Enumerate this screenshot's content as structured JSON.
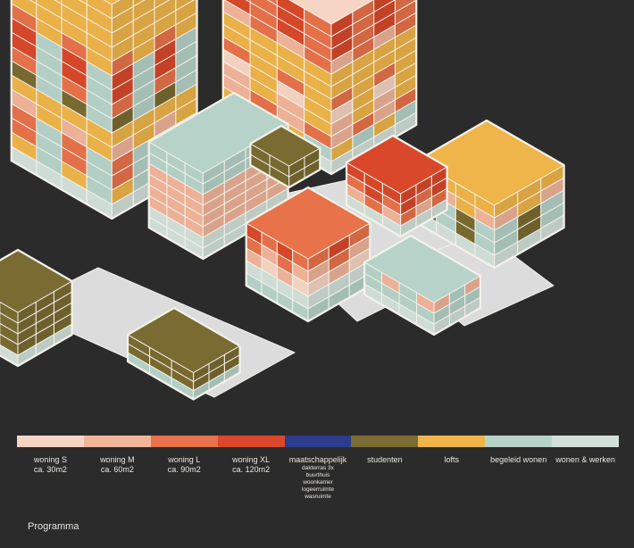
{
  "colors": {
    "woning_s": "#f6d5c4",
    "woning_m": "#f1b59a",
    "woning_l": "#e8724a",
    "woning_xl": "#d9482a",
    "maatschappelijk": "#2b3d8c",
    "studenten": "#7a6b32",
    "lofts": "#efb54a",
    "begeleid": "#b7d3c9",
    "wonen_werken": "#d3e0da",
    "neutral": "#dcdcdc",
    "stroke": "#f3f1ea"
  },
  "legend": [
    {
      "key": "woning_s",
      "label": "woning S",
      "sub": "ca. 30m2"
    },
    {
      "key": "woning_m",
      "label": "woning M",
      "sub": "ca. 60m2"
    },
    {
      "key": "woning_l",
      "label": "woning L",
      "sub": "ca. 90m2"
    },
    {
      "key": "woning_xl",
      "label": "woning XL",
      "sub": "ca. 120m2"
    },
    {
      "key": "maatschappelijk",
      "label": "maatschappelijk",
      "details": [
        "dakterras 3x",
        "buurthuis",
        "woonkamer",
        "logeerruimte",
        "wasruimte"
      ]
    },
    {
      "key": "studenten",
      "label": "studenten"
    },
    {
      "key": "lofts",
      "label": "lofts"
    },
    {
      "key": "begeleid",
      "label": "begeleid wonen"
    },
    {
      "key": "wonen_werken",
      "label": "wonen & werken"
    }
  ],
  "caption": "Programma"
}
